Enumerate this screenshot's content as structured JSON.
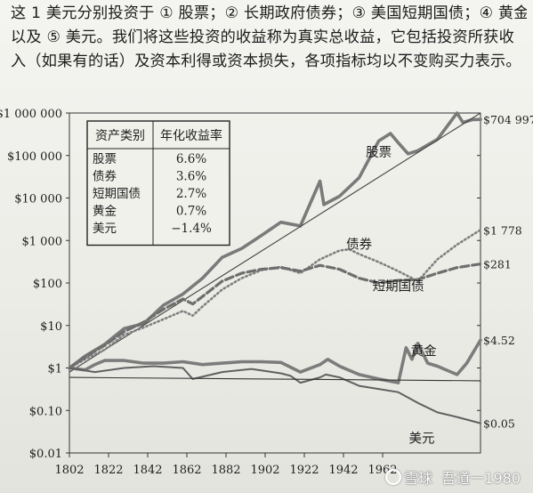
{
  "intro_text": {
    "line1": "这 1 美元分别投资于 ① 股票；② 长期政府债券；③ 美国短期国债；④ 黄金",
    "line2": "以及 ⑤ 美元。我们将这些投资的收益称为真实总收益，它包括投资所获收",
    "line3": "入（如果有的话）及资本利得或资本损失，各项指标均以不变购买力表示。"
  },
  "chart_data": {
    "type": "line",
    "title": "",
    "xlabel": "",
    "ylabel": "",
    "yscale": "log",
    "xlim": [
      1802,
      2012
    ],
    "ylim": [
      0.01,
      1000000
    ],
    "x_ticks": [
      1802,
      1822,
      1842,
      1862,
      1882,
      1902,
      1922,
      1942,
      1962
    ],
    "y_ticks": [
      {
        "value": 1000000,
        "label": "$1 000 000"
      },
      {
        "value": 100000,
        "label": "$100 000"
      },
      {
        "value": 10000,
        "label": "$10 000"
      },
      {
        "value": 1000,
        "label": "$1 000"
      },
      {
        "value": 100,
        "label": "$100"
      },
      {
        "value": 10,
        "label": "$10"
      },
      {
        "value": 1,
        "label": "$1"
      },
      {
        "value": 0.1,
        "label": "$0.10"
      },
      {
        "value": 0.01,
        "label": "$0.01"
      }
    ],
    "grid": false,
    "table": {
      "header": [
        "资产类别",
        "年化收益率"
      ],
      "rows": [
        [
          "股票",
          "6.6%"
        ],
        [
          "债券",
          "3.6%"
        ],
        [
          "短期国债",
          "2.7%"
        ],
        [
          "黄金",
          "0.7%"
        ],
        [
          "美元",
          "−1.4%"
        ]
      ]
    },
    "series": [
      {
        "name": "股票",
        "end_label": "$704 997",
        "color": "#7a7a7a",
        "style": "thick-solid",
        "x": [
          1802,
          1810,
          1820,
          1830,
          1840,
          1850,
          1860,
          1870,
          1880,
          1890,
          1900,
          1910,
          1920,
          1930,
          1932,
          1940,
          1950,
          1960,
          1966,
          1970,
          1975,
          1980,
          1990,
          2000,
          2003,
          2008,
          2012
        ],
        "y": [
          1,
          1.9,
          3.6,
          8.5,
          11,
          30,
          55,
          130,
          400,
          650,
          1300,
          2700,
          2200,
          25000,
          7000,
          11000,
          30000,
          220000,
          330000,
          200000,
          110000,
          130000,
          240000,
          1000000,
          600000,
          700000,
          704997
        ]
      },
      {
        "name": "股票趋势线",
        "color": "#444444",
        "style": "thin-solid",
        "x": [
          1802,
          2012
        ],
        "y": [
          0.8,
          1000000
        ]
      },
      {
        "name": "债券",
        "end_label": "$1 778",
        "color": "#808080",
        "style": "dotted",
        "x": [
          1802,
          1810,
          1820,
          1830,
          1840,
          1850,
          1860,
          1865,
          1870,
          1880,
          1890,
          1900,
          1910,
          1920,
          1930,
          1940,
          1945,
          1950,
          1960,
          1970,
          1980,
          1985,
          1990,
          2000,
          2012
        ],
        "y": [
          1,
          1.6,
          2.7,
          6,
          9,
          14,
          22,
          17,
          28,
          70,
          130,
          200,
          240,
          170,
          360,
          580,
          620,
          480,
          310,
          190,
          110,
          200,
          360,
          800,
          1778
        ]
      },
      {
        "name": "短期国债",
        "end_label": "$281",
        "color": "#6e6e6e",
        "style": "dashed",
        "x": [
          1802,
          1810,
          1820,
          1830,
          1840,
          1850,
          1860,
          1865,
          1870,
          1880,
          1890,
          1900,
          1910,
          1920,
          1930,
          1940,
          1950,
          1960,
          1970,
          1980,
          1990,
          2000,
          2012
        ],
        "y": [
          1,
          1.8,
          3.4,
          7.2,
          12,
          24,
          42,
          32,
          48,
          110,
          170,
          210,
          230,
          190,
          260,
          210,
          130,
          100,
          115,
          120,
          170,
          230,
          281
        ]
      },
      {
        "name": "黄金",
        "end_label": "$4.52",
        "color": "#7c7c7c",
        "style": "thick-solid",
        "x": [
          1802,
          1810,
          1815,
          1820,
          1830,
          1840,
          1850,
          1860,
          1870,
          1880,
          1890,
          1900,
          1910,
          1920,
          1930,
          1934,
          1940,
          1950,
          1960,
          1970,
          1974,
          1977,
          1980,
          1985,
          1990,
          2000,
          2005,
          2012
        ],
        "y": [
          1,
          0.9,
          1.2,
          1.5,
          1.5,
          1.3,
          1.3,
          1.4,
          1.2,
          1.3,
          1.4,
          1.4,
          1.35,
          0.8,
          1.2,
          1.6,
          1.1,
          0.7,
          0.55,
          0.45,
          3.0,
          1.6,
          3.8,
          1.3,
          1.1,
          0.7,
          1.3,
          4.52
        ]
      },
      {
        "name": "美元",
        "end_label": "$0.05",
        "color": "#606060",
        "style": "medium-solid",
        "x": [
          1802,
          1815,
          1830,
          1845,
          1860,
          1865,
          1880,
          1895,
          1910,
          1915,
          1920,
          1930,
          1933,
          1940,
          1950,
          1960,
          1970,
          1980,
          1990,
          2000,
          2012
        ],
        "y": [
          1,
          0.8,
          1.0,
          1.1,
          1.0,
          0.55,
          0.8,
          0.95,
          0.75,
          0.65,
          0.45,
          0.6,
          0.7,
          0.6,
          0.38,
          0.32,
          0.27,
          0.15,
          0.09,
          0.07,
          0.05
        ]
      },
      {
        "name": "基准线",
        "color": "#333333",
        "style": "thin-solid",
        "x": [
          1802,
          2012
        ],
        "y": [
          0.6,
          0.5
        ]
      }
    ],
    "series_labels": [
      {
        "text": "股票",
        "x": 1960,
        "y": 120000
      },
      {
        "text": "债券",
        "x": 1950,
        "y": 820
      },
      {
        "text": "短期国债",
        "x": 1970,
        "y": 85
      },
      {
        "text": "黄金",
        "x": 1983,
        "y": 2.5
      },
      {
        "text": "美元",
        "x": 1982,
        "y": 0.022
      }
    ]
  },
  "watermark": {
    "brand": "雪球",
    "author": "吾道一1980"
  }
}
